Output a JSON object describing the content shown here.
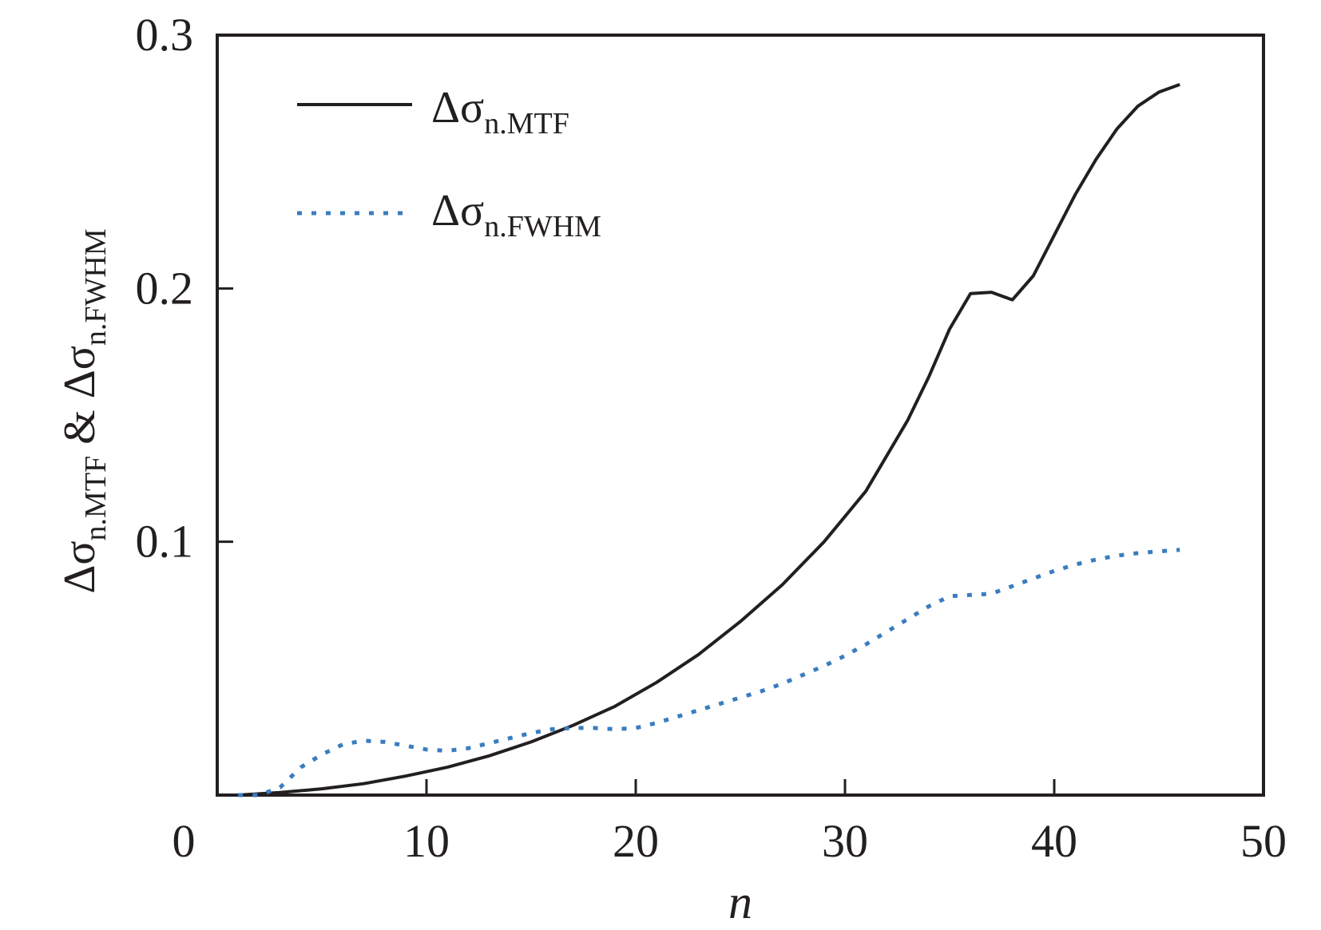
{
  "chart_data": {
    "type": "line",
    "title": "",
    "xlabel": "n",
    "ylabel": {
      "part1_base": "Δσ",
      "part1_sub": "n.MTF",
      "joiner": " & ",
      "part2_base": "Δσ",
      "part2_sub": "n.FWHM"
    },
    "xlim": [
      0,
      50
    ],
    "ylim": [
      0,
      0.3
    ],
    "x_ticks": [
      0,
      10,
      20,
      30,
      40,
      50
    ],
    "x_tick_labels": [
      "0",
      "10",
      "20",
      "30",
      "40",
      "50"
    ],
    "y_ticks": [
      0.1,
      0.2,
      0.3
    ],
    "y_tick_labels": [
      "0.1",
      "0.2",
      "0.3"
    ],
    "grid": false,
    "legend_position": "top-left",
    "series": [
      {
        "name_base": "Δσ",
        "name_sub": "n.MTF",
        "style": "solid",
        "color": "#231f20",
        "x": [
          1,
          3,
          5,
          7,
          9,
          11,
          13,
          15,
          17,
          19,
          21,
          23,
          25,
          27,
          29,
          31,
          33,
          34,
          35,
          36,
          37,
          38,
          39,
          40,
          41,
          42,
          43,
          44,
          45,
          46
        ],
        "y": [
          0.0,
          0.001,
          0.0025,
          0.0045,
          0.0075,
          0.011,
          0.0155,
          0.021,
          0.0275,
          0.035,
          0.0445,
          0.0555,
          0.0685,
          0.083,
          0.1,
          0.12,
          0.148,
          0.165,
          0.184,
          0.198,
          0.1985,
          0.1955,
          0.205,
          0.221,
          0.237,
          0.251,
          0.263,
          0.272,
          0.2775,
          0.2805
        ]
      },
      {
        "name_base": "Δσ",
        "name_sub": "n.FWHM",
        "style": "dotted",
        "color": "#3a7dbf",
        "x": [
          1,
          2,
          3,
          4,
          5,
          6,
          7,
          8,
          9,
          10,
          11,
          12,
          13,
          14,
          15,
          16,
          17,
          18,
          19,
          20,
          21,
          22,
          23,
          24,
          25,
          26,
          27,
          28,
          29,
          30,
          31,
          32,
          33,
          34,
          35,
          36,
          37,
          38,
          39,
          40,
          41,
          42,
          43,
          44,
          45,
          46
        ],
        "y": [
          0.0,
          0.0,
          0.003,
          0.011,
          0.016,
          0.02,
          0.0215,
          0.021,
          0.0195,
          0.018,
          0.0175,
          0.0185,
          0.0205,
          0.0225,
          0.0245,
          0.026,
          0.0265,
          0.0265,
          0.026,
          0.0265,
          0.0285,
          0.031,
          0.0335,
          0.036,
          0.0385,
          0.041,
          0.044,
          0.0475,
          0.051,
          0.055,
          0.0595,
          0.0645,
          0.0695,
          0.0745,
          0.0785,
          0.079,
          0.0795,
          0.0825,
          0.0855,
          0.0885,
          0.091,
          0.093,
          0.0945,
          0.0955,
          0.0962,
          0.0968
        ]
      }
    ]
  }
}
